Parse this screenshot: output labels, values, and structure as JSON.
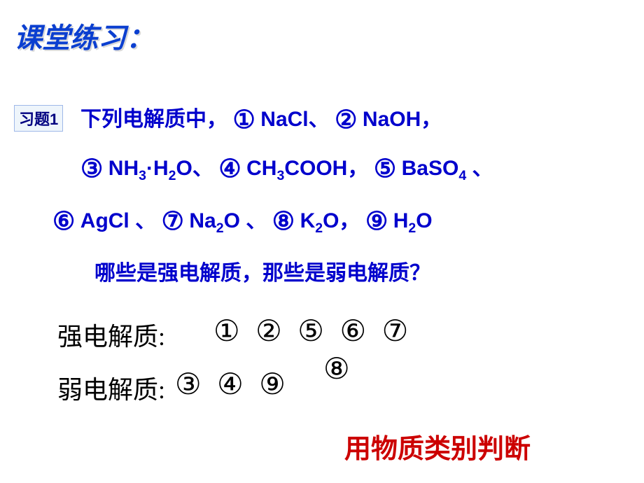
{
  "heading": "课堂练习：",
  "problemLabel": "习题1",
  "line1_a": "下列电解质中，",
  "circ1": "①",
  "f1": "NaCl、",
  "circ2": "②",
  "f2": "NaOH，",
  "circ3": "③",
  "f3a": "NH",
  "f3b": "·H",
  "f3c": "O、",
  "circ4": "④",
  "f4a": "CH",
  "f4b": "COOH，",
  "circ5": "⑤",
  "f5a": "BaSO",
  "f5b": " 、",
  "circ6": "⑥",
  "f6": "AgCl 、",
  "circ7": "⑦",
  "f7a": "Na",
  "f7b": "O 、",
  "circ8": "⑧",
  "f8a": "K",
  "f8b": "O，",
  "circ9": "⑨",
  "f9a": "H",
  "f9b": "O",
  "line4": "哪些是强电解质，那些是弱电解质？",
  "strongLabel": "强电解质:",
  "weakLabel": "弱电解质:",
  "ansStrong": "① ② ⑤ ⑥ ⑦",
  "ansWeak": "③ ④ ⑨",
  "ans8": "⑧",
  "footer": "用物质类别判断",
  "sub3": "3",
  "sub2": "2",
  "sub4": "4"
}
